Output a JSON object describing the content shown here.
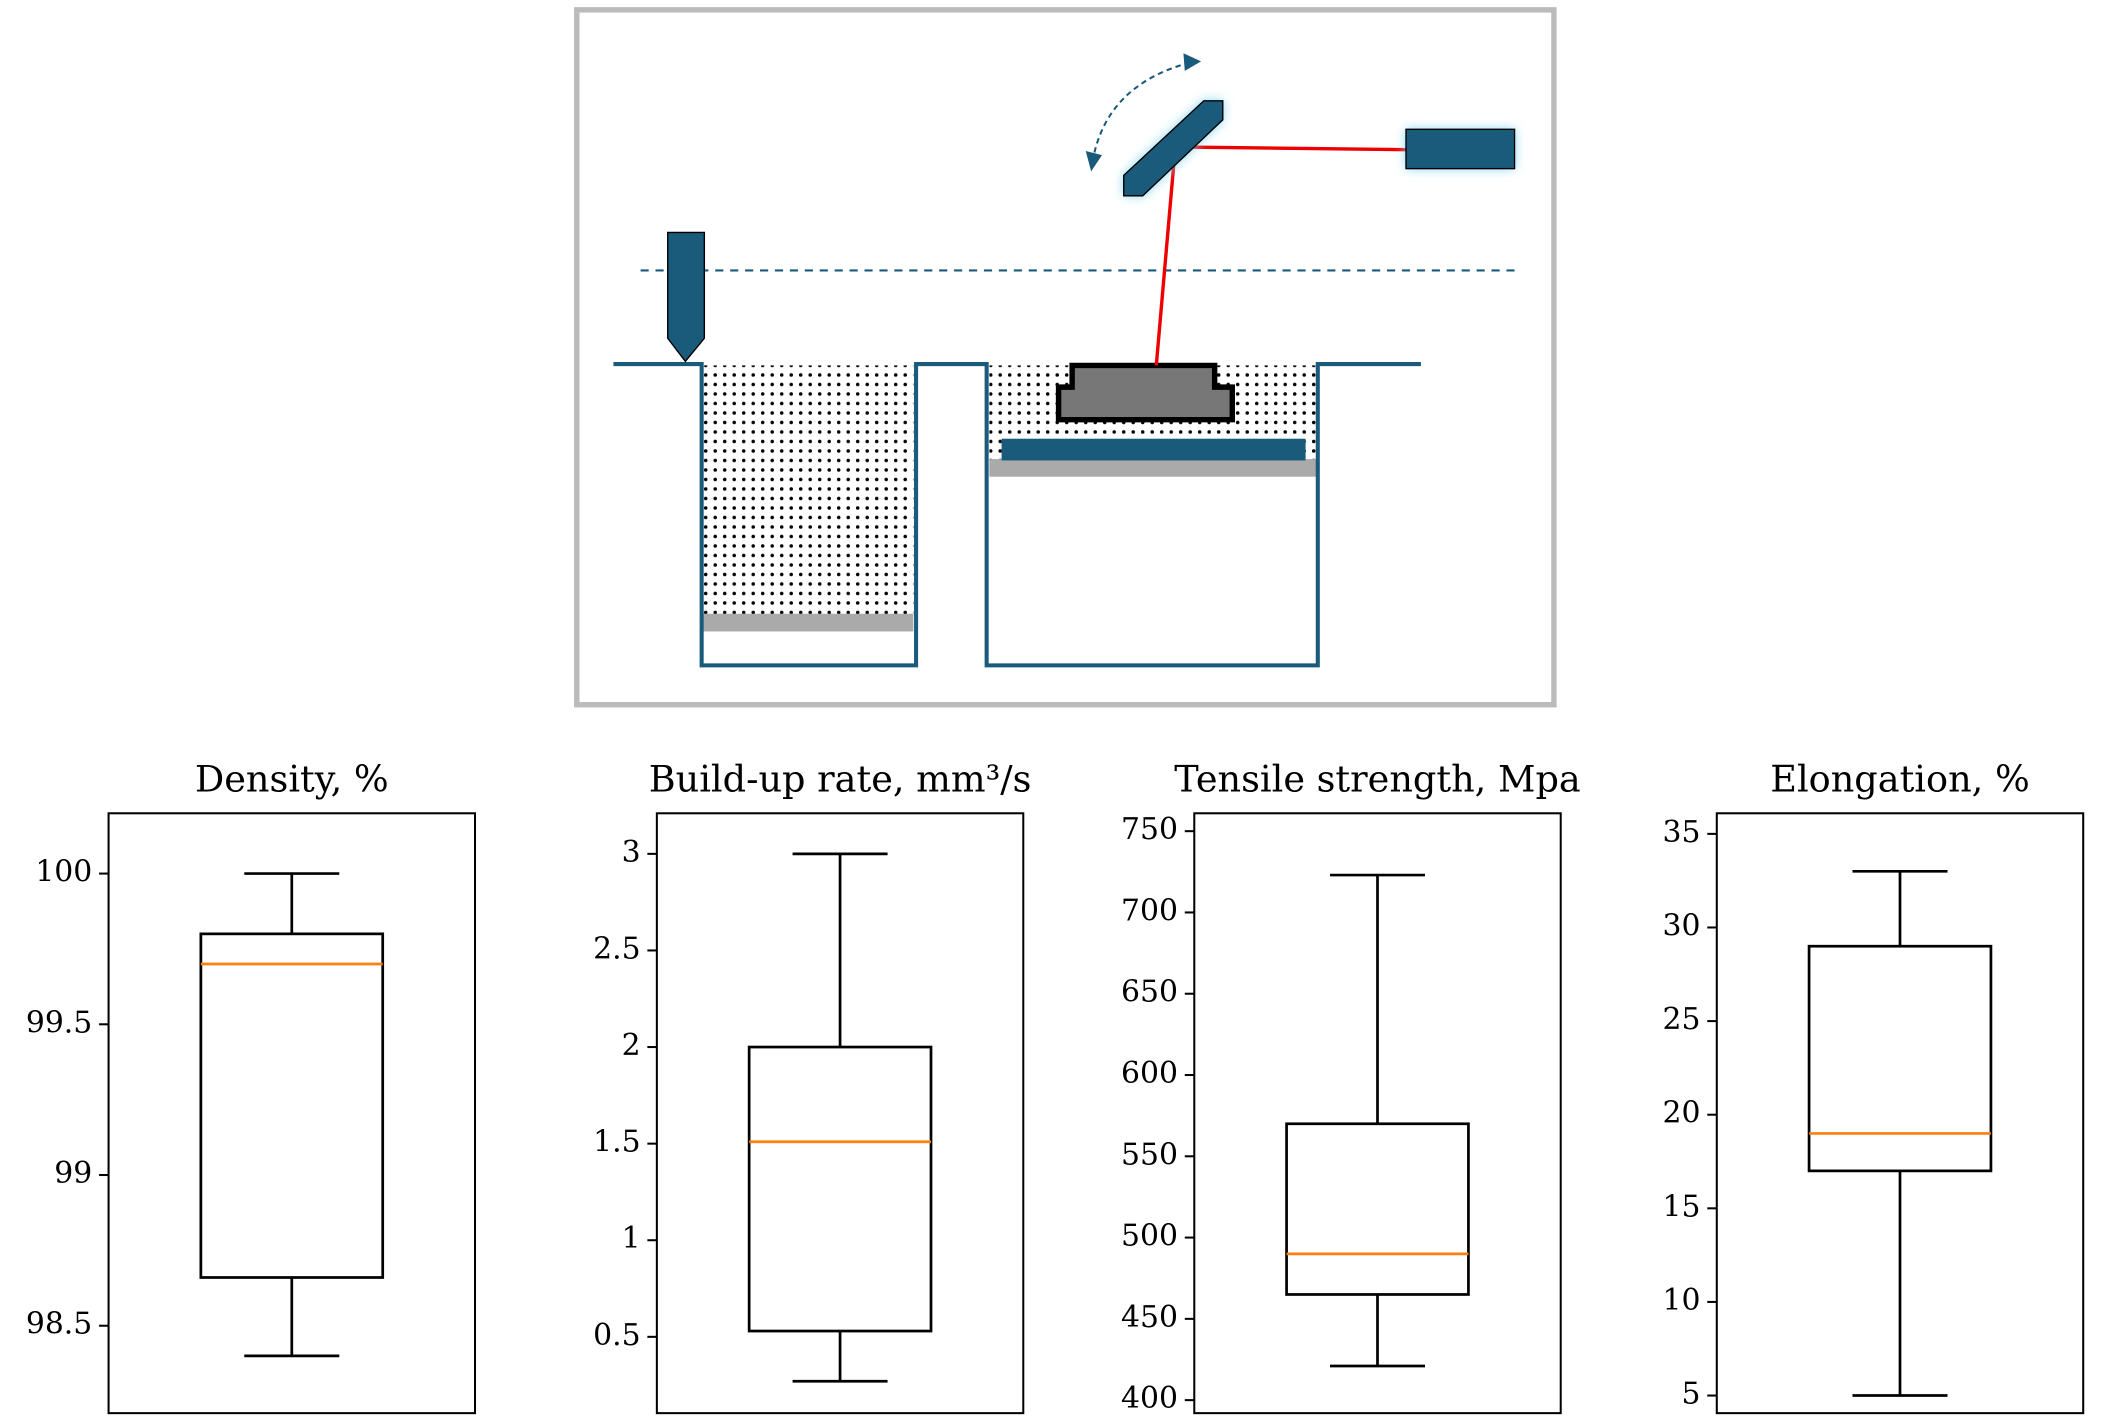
{
  "chart_data": [
    {
      "type": "box",
      "title": "Density, %",
      "boxes": [
        {
          "min": 98.4,
          "q1": 98.66,
          "median": 99.7,
          "q3": 99.8,
          "max": 100
        }
      ],
      "ylim": [
        98.21,
        100.2
      ],
      "yticks": [
        98.5,
        99,
        99.5,
        100
      ],
      "color": "#000000",
      "median_color": "#ff7f0e"
    },
    {
      "type": "box",
      "title": "Build-up rate, mm³/s",
      "boxes": [
        {
          "min": 0.27,
          "q1": 0.53,
          "median": 1.51,
          "q3": 2,
          "max": 3
        }
      ],
      "ylim": [
        0.105,
        3.21
      ],
      "yticks": [
        0.5,
        1,
        1.5,
        2,
        2.5,
        3
      ],
      "color": "#000000",
      "median_color": "#ff7f0e"
    },
    {
      "type": "box",
      "title": "Tensile strength, Mpa",
      "boxes": [
        {
          "min": 421,
          "q1": 465,
          "median": 490,
          "q3": 570,
          "max": 723
        }
      ],
      "ylim": [
        392,
        761
      ],
      "yticks": [
        400,
        450,
        500,
        550,
        600,
        650,
        700,
        750
      ],
      "color": "#000000",
      "median_color": "#ff7f0e"
    },
    {
      "type": "box",
      "title": "Elongation, %",
      "boxes": [
        {
          "min": 5,
          "q1": 17,
          "median": 19,
          "q3": 29,
          "max": 33
        }
      ],
      "ylim": [
        4.06,
        36.1
      ],
      "yticks": [
        5,
        10,
        15,
        20,
        25,
        30,
        35
      ],
      "color": "#000000",
      "median_color": "#ff7f0e"
    }
  ]
}
